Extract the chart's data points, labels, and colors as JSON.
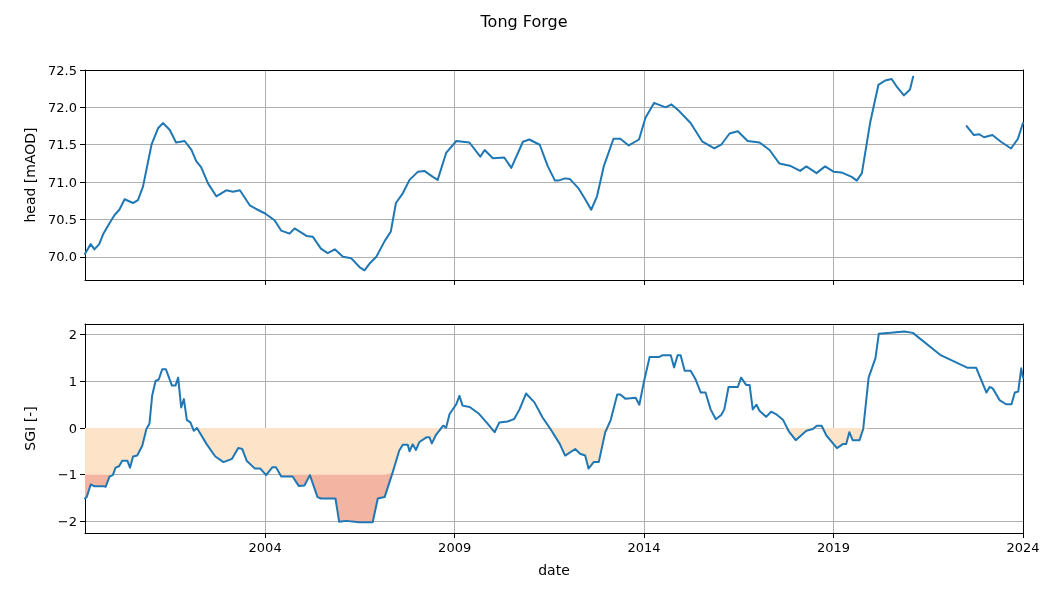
{
  "chart_data": [
    {
      "type": "line",
      "title": "Tong Forge",
      "ylabel": "head [mAOD]",
      "grid": true,
      "tick_labels": "y",
      "line_style": "solid",
      "xlim": [
        "1999-04-01",
        "2024-01-01"
      ],
      "xticks": [
        "2004",
        "2009",
        "2014",
        "2019",
        "2024"
      ],
      "ylim": [
        69.69,
        72.5
      ],
      "yticks": [
        {
          "value": 70,
          "label": "70.0"
        },
        70.5,
        {
          "value": 71,
          "label": "71.0"
        },
        71.5,
        {
          "value": 72,
          "label": "72.0"
        },
        72.5
      ],
      "series": [
        {
          "color": "#1f77b4",
          "x": [
            "1999-04-01",
            "1999-05-26",
            "1999-07-01",
            "1999-08-16",
            "1999-09-25",
            "1999-11-23",
            "2000-01-11",
            "2000-02-26",
            "2000-04-17",
            "2000-07-07",
            "2000-08-23",
            "2000-10-11",
            "2001-01-01",
            "2001-03-05",
            "2001-04-21",
            "2001-06-25",
            "2001-08-26",
            "2001-11-16",
            "2002-01-21",
            "2002-03-08",
            "2002-04-24",
            "2002-07-01",
            "2002-09-18",
            "2002-12-22",
            "2003-02-26",
            "2003-05-03",
            "2003-08-06",
            "2003-10-07",
            "2004-01-01",
            "2004-04-01",
            "2004-06-05",
            "2004-08-23",
            "2004-10-11",
            "2005-02-03",
            "2005-04-04",
            "2005-06-22",
            "2005-08-26",
            "2005-11-03",
            "2006-01-21",
            "2006-04-11",
            "2006-07-01",
            "2006-08-16",
            "2006-10-04",
            "2006-12-08",
            "2007-02-26",
            "2007-04-27",
            "2007-06-15",
            "2007-08-20",
            "2007-10-24",
            "2008-01-14",
            "2008-03-15",
            "2008-06-05",
            "2008-07-21",
            "2008-10-11",
            "2009-01-17",
            "2009-05-23",
            "2009-09-05",
            "2009-10-17",
            "2010-01-04",
            "2010-04-24",
            "2010-07-01",
            "2010-10-21",
            "2010-12-22",
            "2011-04-01",
            "2011-06-18",
            "2011-08-26",
            "2011-09-25",
            "2011-12-02",
            "2012-01-17",
            "2012-04-07",
            "2012-06-12",
            "2012-08-09",
            "2012-10-04",
            "2012-12-08",
            "2013-03-12",
            "2013-05-16",
            "2013-08-06",
            "2013-11-13",
            "2014-01-14",
            "2014-04-07",
            "2014-07-27",
            "2014-09-22",
            "2014-12-05",
            "2015-03-25",
            "2015-07-17",
            "2015-11-09",
            "2016-01-14",
            "2016-04-04",
            "2016-06-22",
            "2016-09-25",
            "2017-01-17",
            "2017-04-24",
            "2017-07-27",
            "2017-11-06",
            "2018-02-13",
            "2018-04-14",
            "2018-07-21",
            "2018-10-11",
            "2019-01-01",
            "2019-03-18",
            "2019-06-25",
            "2019-08-13",
            "2019-10-01",
            "2019-12-19",
            "2020-03-08",
            "2020-05-13",
            "2020-07-14",
            "2020-09-05",
            "2020-11-09",
            "2021-01-07",
            "2021-02-06",
            "2021-10-01",
            "2022-07-07",
            "2022-09-15",
            "2022-11-06",
            "2022-12-22",
            "2023-03-12",
            "2023-06-02",
            "2023-09-08",
            "2023-11-13",
            "2024-01-01"
          ],
          "values": [
            70.04,
            70.17,
            70.1,
            70.17,
            70.31,
            70.45,
            70.56,
            70.63,
            70.77,
            70.72,
            70.76,
            70.94,
            71.5,
            71.72,
            71.79,
            71.7,
            71.53,
            71.55,
            71.43,
            71.28,
            71.2,
            70.98,
            70.81,
            70.89,
            70.87,
            70.89,
            70.69,
            70.64,
            70.58,
            70.49,
            70.35,
            70.31,
            70.38,
            70.28,
            70.27,
            70.11,
            70.05,
            70.1,
            70.0,
            69.98,
            69.86,
            69.82,
            69.91,
            70.0,
            70.21,
            70.34,
            70.72,
            70.85,
            71.03,
            71.14,
            71.15,
            71.07,
            71.03,
            71.39,
            71.55,
            71.53,
            71.34,
            71.43,
            71.32,
            71.33,
            71.19,
            71.54,
            71.57,
            71.5,
            71.21,
            71.02,
            71.02,
            71.05,
            71.04,
            70.92,
            70.77,
            70.63,
            70.81,
            71.21,
            71.58,
            71.58,
            71.49,
            71.57,
            71.86,
            72.06,
            72.0,
            72.04,
            71.95,
            71.79,
            71.54,
            71.45,
            71.5,
            71.65,
            71.68,
            71.55,
            71.53,
            71.43,
            71.25,
            71.22,
            71.15,
            71.21,
            71.12,
            71.21,
            71.14,
            71.13,
            71.07,
            71.02,
            71.12,
            71.79,
            72.3,
            72.36,
            72.38,
            72.27,
            72.16,
            72.24,
            72.41,
            null,
            71.75,
            71.63,
            71.64,
            71.6,
            71.63,
            71.54,
            71.45,
            71.58,
            71.79
          ]
        }
      ]
    },
    {
      "type": "line",
      "xlabel": "date",
      "ylabel": "SGI [-]",
      "grid": true,
      "line_style": "solid",
      "stacked": true,
      "xlim": [
        "1999-04-01",
        "2024-01-01"
      ],
      "xticks": [
        "2004",
        "2009",
        "2014",
        "2019",
        "2024"
      ],
      "ylim": [
        -2.25,
        2.23
      ],
      "yticks": [
        {
          "value": -2,
          "label": "−2"
        },
        {
          "value": -1,
          "label": "−1"
        },
        0,
        1,
        2
      ],
      "x": [
        "1999-04-01",
        "1999-04-17",
        "1999-05-26",
        "1999-07-01",
        "1999-10-04",
        "1999-10-17",
        "1999-11-23",
        "1999-12-25",
        "2000-01-21",
        "2000-02-23",
        "2000-03-25",
        "2000-05-13",
        "2000-06-08",
        "2000-07-07",
        "2000-08-16",
        "2000-10-04",
        "2000-11-13",
        "2000-12-12",
        "2001-01-07",
        "2001-02-09",
        "2001-03-12",
        "2001-04-14",
        "2001-05-20",
        "2001-07-17",
        "2001-08-20",
        "2001-09-15",
        "2001-10-14",
        "2001-11-09",
        "2001-12-08",
        "2002-01-11",
        "2002-02-13",
        "2002-03-15",
        "2002-06-18",
        "2002-09-08",
        "2002-11-26",
        "2003-02-16",
        "2003-04-17",
        "2003-05-26",
        "2003-07-07",
        "2003-09-25",
        "2003-11-16",
        "2004-01-11",
        "2004-03-12",
        "2004-04-14",
        "2004-06-05",
        "2004-09-22",
        "2004-11-20",
        "2005-01-14",
        "2005-03-08",
        "2005-05-20",
        "2005-06-22",
        "2005-11-09",
        "2005-12-15",
        "2006-02-20",
        "2006-06-25",
        "2006-11-03",
        "2006-12-22",
        "2007-02-26",
        "2007-05-13",
        "2007-07-17",
        "2007-08-20",
        "2007-10-07",
        "2007-10-24",
        "2007-11-23",
        "2007-12-25",
        "2008-01-27",
        "2008-04-04",
        "2008-05-03",
        "2008-05-26",
        "2008-07-07",
        "2008-09-12",
        "2008-10-11",
        "2008-11-13",
        "2009-01-17",
        "2009-02-16",
        "2009-03-18",
        "2009-05-26",
        "2009-08-26",
        "2009-11-16",
        "2010-01-21",
        "2010-03-08",
        "2010-05-26",
        "2010-07-27",
        "2010-09-18",
        "2010-11-20",
        "2011-02-09",
        "2011-04-27",
        "2011-07-04",
        "2011-10-11",
        "2011-12-02",
        "2012-03-08",
        "2012-04-24",
        "2012-06-12",
        "2012-07-14",
        "2012-09-02",
        "2012-10-21",
        "2012-12-22",
        "2013-02-13",
        "2013-04-17",
        "2013-05-16",
        "2013-07-04",
        "2013-10-11",
        "2013-11-16",
        "2014-01-01",
        "2014-02-23",
        "2014-05-23",
        "2014-06-25",
        "2014-09-15",
        "2014-10-17",
        "2014-11-20",
        "2014-12-19",
        "2015-01-27",
        "2015-03-25",
        "2015-05-13",
        "2015-07-01",
        "2015-08-16",
        "2015-10-04",
        "2015-11-23",
        "2016-01-14",
        "2016-02-13",
        "2016-03-25",
        "2016-06-22",
        "2016-07-24",
        "2016-09-12",
        "2016-10-14",
        "2016-11-13",
        "2016-12-19",
        "2017-01-17",
        "2017-03-22",
        "2017-05-09",
        "2017-06-25",
        "2017-09-02",
        "2017-10-27",
        "2018-01-01",
        "2018-04-14",
        "2018-06-15",
        "2018-07-24",
        "2018-09-08",
        "2018-10-24",
        "2019-02-03",
        "2019-04-04",
        "2019-05-03",
        "2019-06-02",
        "2019-07-04",
        "2019-09-08",
        "2019-10-14",
        "2019-12-05",
        "2020-02-09",
        "2020-03-12",
        "2020-07-04",
        "2020-11-13",
        "2021-02-03",
        "2021-10-24",
        "2022-07-17",
        "2022-10-07",
        "2023-01-14",
        "2023-02-13",
        "2023-03-15",
        "2023-05-20",
        "2023-07-21",
        "2023-09-12",
        "2023-10-14",
        "2023-11-16",
        "2023-12-15",
        "2024-01-01"
      ],
      "series": [
        {
          "color": "#1f77b4",
          "values": [
            -1.51,
            -1.48,
            -1.21,
            -1.25,
            -1.25,
            -1.26,
            -1.04,
            -1.01,
            -0.85,
            -0.82,
            -0.7,
            -0.7,
            -0.85,
            -0.61,
            -0.59,
            -0.38,
            -0.02,
            0.09,
            0.69,
            1.01,
            1.04,
            1.26,
            1.26,
            0.91,
            0.91,
            1.08,
            0.44,
            0.62,
            0.17,
            0.12,
            -0.06,
            0.0,
            -0.35,
            -0.61,
            -0.73,
            -0.66,
            -0.43,
            -0.45,
            -0.7,
            -0.87,
            -0.87,
            -1.01,
            -0.84,
            -0.84,
            -1.04,
            -1.04,
            -1.24,
            -1.23,
            -1.01,
            -1.48,
            -1.51,
            -1.51,
            -2.01,
            -1.99,
            -2.02,
            -2.02,
            -1.51,
            -1.48,
            -0.96,
            -0.48,
            -0.36,
            -0.36,
            -0.5,
            -0.35,
            -0.47,
            -0.3,
            -0.2,
            -0.2,
            -0.33,
            -0.14,
            0.05,
            0.01,
            0.3,
            0.51,
            0.69,
            0.48,
            0.45,
            0.3,
            0.09,
            -0.09,
            0.12,
            0.14,
            0.19,
            0.4,
            0.74,
            0.55,
            0.23,
            0.01,
            -0.34,
            -0.59,
            -0.45,
            -0.55,
            -0.59,
            -0.87,
            -0.73,
            -0.73,
            -0.09,
            0.17,
            0.72,
            0.72,
            0.63,
            0.65,
            0.5,
            1.01,
            1.52,
            1.52,
            1.56,
            1.56,
            1.3,
            1.56,
            1.56,
            1.23,
            1.23,
            1.04,
            0.76,
            0.76,
            0.4,
            0.19,
            0.28,
            0.4,
            0.88,
            0.88,
            1.08,
            0.92,
            0.92,
            0.4,
            0.5,
            0.37,
            0.24,
            0.35,
            0.3,
            0.17,
            -0.07,
            -0.26,
            -0.06,
            -0.02,
            0.05,
            0.05,
            -0.16,
            -0.43,
            -0.34,
            -0.34,
            -0.09,
            -0.26,
            -0.26,
            -0.02,
            1.08,
            1.5,
            2.02,
            2.04,
            2.07,
            2.04,
            1.57,
            1.29,
            1.29,
            0.76,
            0.88,
            0.85,
            0.6,
            0.51,
            0.51,
            0.76,
            0.78,
            1.28,
            1.08
          ]
        },
        {
          "type": "area",
          "color": "#fde3c8",
          "values": [
            -1,
            -1,
            -1,
            -1,
            -1,
            -1,
            -1,
            -1,
            -0.85,
            -0.82,
            -0.7,
            -0.7,
            -0.85,
            -0.61,
            -0.59,
            -0.38,
            -0.02,
            0,
            0,
            0,
            0,
            0,
            0,
            0,
            0,
            0,
            0,
            0,
            0,
            0,
            -0.06,
            0,
            -0.35,
            -0.61,
            -0.73,
            -0.66,
            -0.43,
            -0.45,
            -0.7,
            -0.87,
            -0.87,
            -1,
            -0.84,
            -0.84,
            -1,
            -1,
            -1,
            -1,
            -1,
            -1,
            -1,
            -1,
            -1,
            -1,
            -1,
            -1,
            -1,
            -1,
            -0.96,
            -0.48,
            -0.36,
            -0.36,
            -0.5,
            -0.35,
            -0.47,
            -0.3,
            -0.2,
            -0.2,
            -0.33,
            -0.14,
            0,
            0,
            0,
            0,
            0,
            0,
            0,
            0,
            0,
            -0.09,
            0,
            0,
            0,
            0,
            0,
            0,
            0,
            0,
            -0.34,
            -0.59,
            -0.45,
            -0.55,
            -0.59,
            -0.87,
            -0.73,
            -0.73,
            -0.09,
            0,
            0,
            0,
            0,
            0,
            0,
            0,
            0,
            0,
            0,
            0,
            0,
            0,
            0,
            0,
            0,
            0,
            0,
            0,
            0,
            0,
            0,
            0,
            0,
            0,
            0,
            0,
            0,
            0,
            0,
            0,
            0,
            0,
            0,
            0,
            -0.07,
            -0.26,
            -0.06,
            -0.02,
            0,
            0,
            -0.16,
            -0.43,
            -0.34,
            -0.34,
            -0.09,
            -0.26,
            -0.26,
            -0.02,
            0,
            0,
            0,
            0,
            0,
            0,
            0,
            0,
            0,
            0,
            0,
            0,
            0,
            0,
            0,
            0,
            0,
            0,
            0
          ]
        },
        {
          "type": "area",
          "color": "#f4b4a2",
          "values": [
            -0.51,
            -0.48,
            -0.21,
            -0.25,
            -0.25,
            -0.26,
            -0.04,
            -0.01,
            0,
            0,
            0,
            0,
            0,
            0,
            0,
            0,
            0,
            0,
            0,
            0,
            0,
            0,
            0,
            0,
            0,
            0,
            0,
            0,
            0,
            0,
            0,
            0,
            0,
            0,
            0,
            0,
            0,
            0,
            0,
            0,
            0,
            -0.01,
            0,
            0,
            -0.04,
            -0.04,
            -0.24,
            -0.23,
            -0.01,
            -0.48,
            -0.51,
            -0.51,
            -1.01,
            -0.99,
            -1.02,
            -1.02,
            -0.51,
            -0.48,
            0,
            0,
            0,
            0,
            0,
            0,
            0,
            0,
            0,
            0,
            0,
            0,
            0,
            0,
            0,
            0,
            0,
            0,
            0,
            0,
            0,
            0,
            0,
            0,
            0,
            0,
            0,
            0,
            0,
            0,
            0,
            0,
            0,
            0,
            0,
            0,
            0,
            0,
            0,
            0,
            0,
            0,
            0,
            0,
            0,
            0,
            0,
            0,
            0,
            0,
            0,
            0,
            0,
            0,
            0,
            0,
            0,
            0,
            0,
            0,
            0,
            0,
            0,
            0,
            0,
            0,
            0,
            0,
            0,
            0,
            0,
            0,
            0,
            0,
            0,
            0,
            0,
            0,
            0,
            0,
            0,
            0,
            0,
            0,
            0,
            0,
            0,
            0,
            0,
            0,
            0,
            0,
            0,
            0,
            0,
            0,
            0,
            0,
            0,
            0,
            0,
            0,
            0,
            0,
            0,
            0,
            0
          ]
        }
      ]
    }
  ]
}
